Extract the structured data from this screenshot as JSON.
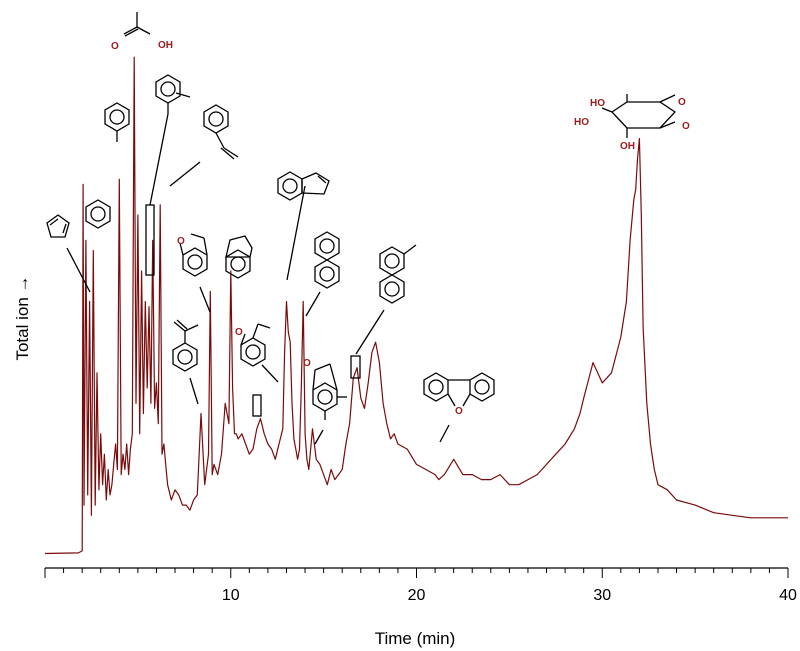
{
  "chart_data": {
    "type": "line",
    "xlabel": "Time (min)",
    "ylabel": "Total ion",
    "ylabel_arrow": "→",
    "xlim": [
      0,
      40
    ],
    "ylim": [
      0,
      100
    ],
    "x_ticks": [
      10,
      20,
      30,
      40
    ],
    "x_minor_step": 1,
    "grid": false,
    "series": [
      {
        "color": "#7a0b0b",
        "x": [
          0.0,
          1.8,
          2.0,
          2.05,
          2.1,
          2.2,
          2.3,
          2.4,
          2.5,
          2.6,
          2.7,
          2.8,
          2.9,
          3.0,
          3.1,
          3.2,
          3.3,
          3.4,
          3.5,
          3.6,
          3.7,
          3.8,
          3.9,
          4.0,
          4.1,
          4.2,
          4.3,
          4.4,
          4.5,
          4.6,
          4.7,
          4.8,
          4.9,
          5.0,
          5.1,
          5.2,
          5.3,
          5.4,
          5.5,
          5.6,
          5.7,
          5.8,
          5.9,
          6.0,
          6.1,
          6.2,
          6.3,
          6.4,
          6.5,
          6.6,
          6.8,
          7.0,
          7.2,
          7.4,
          7.6,
          7.8,
          8.0,
          8.2,
          8.4,
          8.6,
          8.8,
          8.9,
          9.0,
          9.1,
          9.3,
          9.5,
          9.7,
          9.9,
          10.0,
          10.1,
          10.2,
          10.3,
          10.4,
          10.6,
          10.8,
          11.0,
          11.2,
          11.4,
          11.6,
          11.8,
          12.0,
          12.2,
          12.4,
          12.6,
          12.8,
          12.9,
          13.0,
          13.1,
          13.2,
          13.3,
          13.4,
          13.5,
          13.6,
          13.7,
          13.8,
          13.9,
          14.0,
          14.1,
          14.2,
          14.4,
          14.6,
          14.8,
          15.0,
          15.2,
          15.4,
          15.6,
          15.8,
          16.0,
          16.2,
          16.4,
          16.6,
          16.8,
          17.0,
          17.2,
          17.4,
          17.6,
          17.8,
          18.0,
          18.2,
          18.4,
          18.6,
          18.8,
          19.0,
          19.5,
          20.0,
          20.5,
          21.0,
          21.2,
          21.5,
          22.0,
          22.5,
          23.0,
          23.5,
          24.0,
          24.5,
          25.0,
          25.5,
          26.0,
          26.5,
          27.0,
          27.5,
          28.0,
          28.5,
          28.8,
          29.0,
          29.5,
          30.0,
          30.5,
          31.0,
          31.3,
          31.5,
          31.7,
          31.8,
          31.9,
          32.0,
          32.1,
          32.2,
          32.4,
          32.6,
          32.8,
          33.0,
          33.5,
          34.0,
          35.0,
          36.0,
          37.0,
          38.0,
          39.0,
          40.0
        ],
        "y": [
          0.5,
          0.6,
          1.0,
          73,
          10,
          62,
          12,
          50,
          8,
          60,
          10,
          36,
          13,
          24,
          14,
          20,
          11,
          17,
          12,
          14,
          18,
          22,
          17,
          74,
          16,
          20,
          17,
          22,
          16,
          21,
          24,
          98,
          30,
          67,
          24,
          56,
          28,
          50,
          33,
          49,
          30,
          62,
          29,
          34,
          26,
          69,
          20,
          22,
          18,
          14,
          11,
          13,
          12,
          10,
          10,
          9,
          11,
          12,
          28,
          14,
          20,
          52,
          16,
          18,
          16,
          20,
          30,
          26,
          56,
          33,
          24,
          24,
          23,
          24,
          22,
          20,
          21,
          25,
          27,
          24,
          22,
          21,
          19,
          22,
          25,
          40,
          50,
          44,
          42,
          30,
          23,
          21,
          19,
          21,
          33,
          50,
          24,
          19,
          17,
          25,
          19,
          18,
          16,
          14,
          17,
          15,
          16,
          17,
          22,
          26,
          35,
          37,
          31,
          29,
          34,
          40,
          42,
          38,
          30,
          26,
          23,
          24,
          22,
          21,
          18,
          17,
          16,
          15,
          16,
          19,
          16,
          16,
          15,
          15,
          16,
          14,
          14,
          15,
          16,
          18,
          20,
          22,
          25,
          28,
          31,
          38,
          34,
          36,
          43,
          50,
          62,
          70,
          72,
          78,
          82,
          67,
          45,
          30,
          22,
          17,
          14,
          13,
          11,
          10,
          8.5,
          8,
          7.5,
          7.5,
          7.5
        ]
      }
    ],
    "annotations": [
      {
        "compound": "cyclopentadiene",
        "x": 2.0
      },
      {
        "compound": "benzene",
        "x": 2.6
      },
      {
        "compound": "acetic acid",
        "x": 4.9
      },
      {
        "compound": "toluene",
        "x": 4.0
      },
      {
        "compound": "xylene",
        "x": 5.6
      },
      {
        "compound": "styrene",
        "x": 6.4
      },
      {
        "compound": "methylstyrene",
        "x": 8.6
      },
      {
        "compound": "benzofuran",
        "x": 8.9
      },
      {
        "compound": "indane",
        "x": 10.0
      },
      {
        "compound": "methylbenzofuran",
        "x": 11.2
      },
      {
        "compound": "indene",
        "x": 13.0
      },
      {
        "compound": "naphthalene",
        "x": 13.8
      },
      {
        "compound": "dimethylbenzofuran",
        "x": 14.6
      },
      {
        "compound": "methylnaphthalene",
        "x": 16.8
      },
      {
        "compound": "dibenzofuran",
        "x": 21.0
      },
      {
        "compound": "levoglucosan",
        "x": 31.8
      }
    ],
    "hetero_labels": {
      "O": "O",
      "OH": "OH",
      "HO": "HO"
    }
  }
}
